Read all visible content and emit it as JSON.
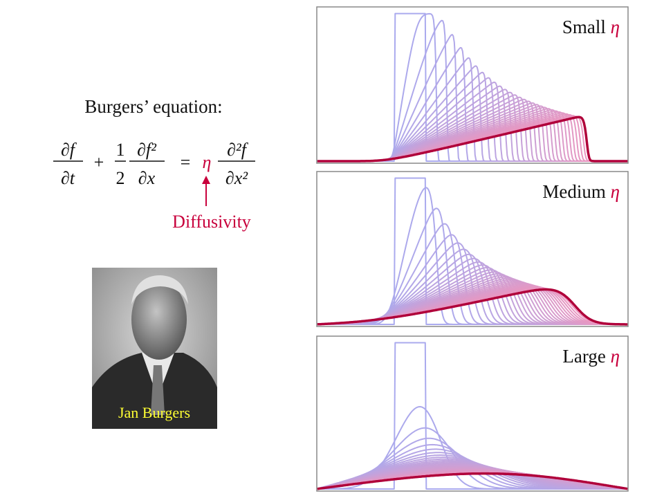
{
  "heading": "Burgers’ equation:",
  "equation": {
    "term1_num": "∂f",
    "term1_den": "∂t",
    "plus": "+",
    "half_num": "1",
    "half_den": "2",
    "term2_num": "∂f²",
    "term2_den": "∂x",
    "equals": "=",
    "coefficient": "η",
    "term3_num": "∂²f",
    "term3_den": "∂x²"
  },
  "annotation": "Diffusivity",
  "photo_caption": "Jan Burgers",
  "panels": [
    {
      "label": "Small",
      "symbol": "η"
    },
    {
      "label": "Medium",
      "symbol": "η"
    },
    {
      "label": "Large",
      "symbol": "η"
    }
  ]
}
